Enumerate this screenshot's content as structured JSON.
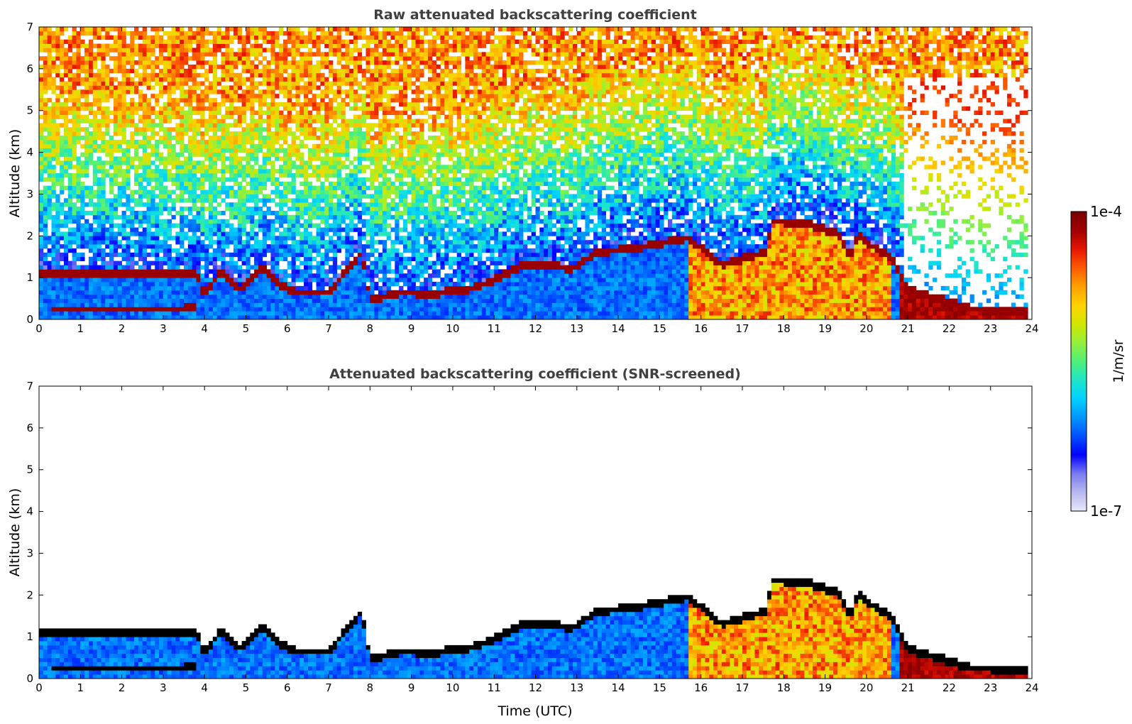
{
  "figure": {
    "colormap": {
      "label": "1/m/sr",
      "max_label": "1e-4",
      "min_label": "1e-7",
      "scale": "log",
      "range": [
        1e-07,
        0.0001
      ],
      "stops": [
        "#e8e8f8",
        "#b8b8f0",
        "#7a7af0",
        "#0000ff",
        "#0050ff",
        "#0096ff",
        "#00d2ff",
        "#1ee6c8",
        "#50f078",
        "#96f03c",
        "#d2e600",
        "#ffd200",
        "#ffa000",
        "#ff5a00",
        "#e61400",
        "#a00000",
        "#780000"
      ]
    }
  },
  "chart_data": [
    {
      "type": "heatmap",
      "title": "Raw attenuated backscattering coefficient",
      "xlabel": "",
      "ylabel": "Altitude (km)",
      "xlim": [
        0,
        24
      ],
      "ylim": [
        0,
        7
      ],
      "xticks": [
        "0",
        "1",
        "2",
        "3",
        "4",
        "5",
        "6",
        "7",
        "8",
        "9",
        "10",
        "11",
        "12",
        "13",
        "14",
        "15",
        "16",
        "17",
        "18",
        "19",
        "20",
        "21",
        "22",
        "23",
        "24"
      ],
      "yticks": [
        "0",
        "1",
        "2",
        "3",
        "4",
        "5",
        "6",
        "7"
      ],
      "variable": "attenuated backscatter",
      "units": "1/m/sr",
      "screened": false,
      "cloud_base_km": [
        {
          "t": 0.0,
          "z": 1.1
        },
        {
          "t": 2.3,
          "z": 1.1
        },
        {
          "t": 2.6,
          "z": 1.05
        },
        {
          "t": 3.8,
          "z": 1.1
        },
        {
          "t": 4.0,
          "z": 0.6
        },
        {
          "t": 4.4,
          "z": 1.15
        },
        {
          "t": 4.8,
          "z": 0.7
        },
        {
          "t": 5.4,
          "z": 1.2
        },
        {
          "t": 5.8,
          "z": 0.85
        },
        {
          "t": 6.2,
          "z": 0.65
        },
        {
          "t": 7.0,
          "z": 0.65
        },
        {
          "t": 7.8,
          "z": 1.6
        },
        {
          "t": 8.0,
          "z": 0.45
        },
        {
          "t": 8.8,
          "z": 0.65
        },
        {
          "t": 9.5,
          "z": 0.6
        },
        {
          "t": 10.5,
          "z": 0.75
        },
        {
          "t": 11.0,
          "z": 0.95
        },
        {
          "t": 11.7,
          "z": 1.3
        },
        {
          "t": 12.3,
          "z": 1.3
        },
        {
          "t": 12.9,
          "z": 1.2
        },
        {
          "t": 13.5,
          "z": 1.6
        },
        {
          "t": 14.5,
          "z": 1.7
        },
        {
          "t": 15.4,
          "z": 1.9
        },
        {
          "t": 15.7,
          "z": 1.95
        },
        {
          "t": 16.0,
          "z": 1.7
        },
        {
          "t": 16.5,
          "z": 1.3
        },
        {
          "t": 17.6,
          "z": 1.6
        },
        {
          "t": 17.7,
          "z": 2.35
        },
        {
          "t": 18.5,
          "z": 2.3
        },
        {
          "t": 19.3,
          "z": 2.05
        },
        {
          "t": 19.6,
          "z": 1.5
        },
        {
          "t": 19.8,
          "z": 2.0
        },
        {
          "t": 20.2,
          "z": 1.7
        },
        {
          "t": 20.6,
          "z": 1.5
        },
        {
          "t": 21.0,
          "z": 0.7
        },
        {
          "t": 21.7,
          "z": 0.5
        },
        {
          "t": 22.5,
          "z": 0.25
        },
        {
          "t": 23.8,
          "z": 0.2
        }
      ],
      "lower_layer_km": [
        {
          "t": 0.3,
          "z": 0.25
        },
        {
          "t": 2.5,
          "z": 0.25
        },
        {
          "t": 3.8,
          "z": 0.3
        }
      ]
    },
    {
      "type": "heatmap",
      "title": "Attenuated backscattering coefficient (SNR-screened)",
      "xlabel": "Time (UTC)",
      "ylabel": "Altitude (km)",
      "xlim": [
        0,
        24
      ],
      "ylim": [
        0,
        7
      ],
      "xticks": [
        "0",
        "1",
        "2",
        "3",
        "4",
        "5",
        "6",
        "7",
        "8",
        "9",
        "10",
        "11",
        "12",
        "13",
        "14",
        "15",
        "16",
        "17",
        "18",
        "19",
        "20",
        "21",
        "22",
        "23",
        "24"
      ],
      "yticks": [
        "0",
        "1",
        "2",
        "3",
        "4",
        "5",
        "6",
        "7"
      ],
      "variable": "attenuated backscatter",
      "units": "1/m/sr",
      "screened": true,
      "cloud_base_km": [
        {
          "t": 0.0,
          "z": 1.1
        },
        {
          "t": 2.3,
          "z": 1.1
        },
        {
          "t": 2.6,
          "z": 1.05
        },
        {
          "t": 3.8,
          "z": 1.1
        },
        {
          "t": 4.0,
          "z": 0.6
        },
        {
          "t": 4.4,
          "z": 1.15
        },
        {
          "t": 4.8,
          "z": 0.7
        },
        {
          "t": 5.4,
          "z": 1.2
        },
        {
          "t": 5.8,
          "z": 0.85
        },
        {
          "t": 6.2,
          "z": 0.65
        },
        {
          "t": 7.0,
          "z": 0.65
        },
        {
          "t": 7.8,
          "z": 1.6
        },
        {
          "t": 8.0,
          "z": 0.45
        },
        {
          "t": 8.8,
          "z": 0.65
        },
        {
          "t": 9.5,
          "z": 0.6
        },
        {
          "t": 10.5,
          "z": 0.75
        },
        {
          "t": 11.0,
          "z": 0.95
        },
        {
          "t": 11.7,
          "z": 1.3
        },
        {
          "t": 12.3,
          "z": 1.3
        },
        {
          "t": 12.9,
          "z": 1.2
        },
        {
          "t": 13.5,
          "z": 1.6
        },
        {
          "t": 14.5,
          "z": 1.7
        },
        {
          "t": 15.4,
          "z": 1.9
        },
        {
          "t": 15.7,
          "z": 1.95
        },
        {
          "t": 16.0,
          "z": 1.7
        },
        {
          "t": 16.5,
          "z": 1.3
        },
        {
          "t": 17.6,
          "z": 1.6
        },
        {
          "t": 17.7,
          "z": 2.35
        },
        {
          "t": 18.5,
          "z": 2.3
        },
        {
          "t": 19.3,
          "z": 2.05
        },
        {
          "t": 19.6,
          "z": 1.5
        },
        {
          "t": 19.8,
          "z": 2.0
        },
        {
          "t": 20.2,
          "z": 1.7
        },
        {
          "t": 20.6,
          "z": 1.5
        },
        {
          "t": 21.0,
          "z": 0.7
        },
        {
          "t": 21.7,
          "z": 0.5
        },
        {
          "t": 22.5,
          "z": 0.25
        },
        {
          "t": 23.8,
          "z": 0.2
        }
      ],
      "lower_layer_km": [
        {
          "t": 0.3,
          "z": 0.25
        },
        {
          "t": 2.5,
          "z": 0.25
        },
        {
          "t": 3.8,
          "z": 0.3
        }
      ]
    }
  ]
}
